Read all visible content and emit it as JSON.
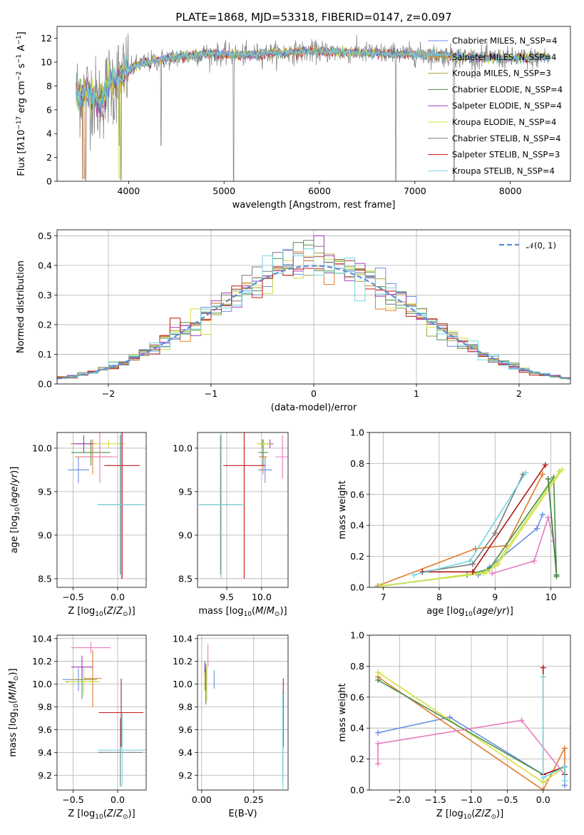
{
  "figure": {
    "title": "PLATE=1868, MJD=53318, FIBERID=0147, z=0.097",
    "colors": [
      "#6a8fe0",
      "#e07b2e",
      "#a8a040",
      "#4a8f4a",
      "#9f3ab8",
      "#d6df3a",
      "#7a7a7a",
      "#c21818",
      "#70d6e0"
    ],
    "highlight_colors": {
      "pink": "#e77bbd",
      "lime": "#c7e25a",
      "darkred": "#b01414",
      "darkgreen": "#3a7a3a"
    }
  },
  "chart_data": [
    {
      "id": "spectrum",
      "type": "line",
      "xlabel": "wavelength [Angstrom, rest frame]",
      "ylabel": "Flux [f_λ10^-17 erg cm^-2 s^-1 A^-1]",
      "xlim": [
        3250,
        8630
      ],
      "ylim": [
        0,
        13
      ],
      "xticks": [
        4000,
        5000,
        6000,
        7000,
        8000
      ],
      "yticks": [
        0,
        2,
        4,
        6,
        8,
        10,
        12
      ],
      "legend_position": "top-right",
      "legend": [
        "Chabrier MILES, N_SSP=4",
        "Salpeter MILES, N_SSP=4",
        "Kroupa MILES, N_SSP=3",
        "Chabrier ELODIE, N_SSP=4",
        "Salpeter ELODIE, N_SSP=4",
        "Kroupa ELODIE, N_SSP=4",
        "Chabrier STELIB, N_SSP=4",
        "Salpeter STELIB, N_SSP=3",
        "Kroupa STELIB, N_SSP=4"
      ],
      "continuum": [
        [
          3450,
          7.4
        ],
        [
          3600,
          7.3
        ],
        [
          3700,
          6.5
        ],
        [
          3800,
          8.2
        ],
        [
          3950,
          9.0
        ],
        [
          4100,
          9.8
        ],
        [
          4400,
          10.3
        ],
        [
          4800,
          10.7
        ],
        [
          5200,
          10.6
        ],
        [
          5600,
          10.8
        ],
        [
          6000,
          10.9
        ],
        [
          6400,
          10.8
        ],
        [
          6800,
          10.7
        ],
        [
          7200,
          10.6
        ],
        [
          7600,
          10.4
        ],
        [
          8000,
          10.3
        ],
        [
          8400,
          10.4
        ]
      ],
      "dips": [
        [
          3520,
          0.2
        ],
        [
          3550,
          0.1
        ],
        [
          3850,
          5.2
        ],
        [
          3900,
          3.0
        ],
        [
          3920,
          0.1
        ],
        [
          4340,
          3.0
        ],
        [
          5100,
          0.0
        ],
        [
          6800,
          0.0
        ],
        [
          7410,
          0.0
        ]
      ]
    },
    {
      "id": "residuals",
      "type": "histogram",
      "xlabel": "(data-model)/error",
      "ylabel": "Normed distribution",
      "xlim": [
        -2.5,
        2.5
      ],
      "ylim": [
        0,
        0.52
      ],
      "xticks": [
        -2,
        -1,
        0,
        1,
        2
      ],
      "yticks": [
        0.0,
        0.1,
        0.2,
        0.3,
        0.4,
        0.5
      ],
      "legend_position": "top-right",
      "legend": [
        "𝒩(0, 1)"
      ],
      "bin_width": 0.1,
      "normal": {
        "mean": 0,
        "sigma": 1
      }
    },
    {
      "id": "age-vs-Z",
      "type": "errorbar",
      "xlabel": "Z [log10(Z/Z⊙)]",
      "ylabel": "age [log10(age/yr)]",
      "xlim": [
        -0.68,
        0.32
      ],
      "ylim": [
        8.4,
        10.18
      ],
      "xticks": [
        -0.5,
        0.0
      ],
      "yticks": [
        8.5,
        9.0,
        9.5,
        10.0
      ],
      "points": [
        {
          "x": -0.44,
          "y": 9.75,
          "xerr": 0.12,
          "yerr": 0.15,
          "c": 0
        },
        {
          "x": -0.28,
          "y": 9.9,
          "xerr": 0.2,
          "yerr": 0.2,
          "c": 1
        },
        {
          "x": -0.38,
          "y": 10.05,
          "xerr": 0.15,
          "yerr": 0.05,
          "c": 2
        },
        {
          "x": -0.3,
          "y": 9.95,
          "xerr": 0.22,
          "yerr": 0.15,
          "c": 3
        },
        {
          "x": -0.38,
          "y": 10.05,
          "xerr": 0.12,
          "yerr": 0.1,
          "c": 4
        },
        {
          "x": -0.1,
          "y": 10.05,
          "xerr": 0.18,
          "yerr": 0.05,
          "c": 5
        },
        {
          "x": 0.03,
          "y": 9.35,
          "xerr": 0.25,
          "yerr": 0.8,
          "c": 6
        },
        {
          "x": 0.05,
          "y": 9.8,
          "xerr": 0.2,
          "yerr": 1.3,
          "c": 7
        },
        {
          "x": 0.04,
          "y": 9.35,
          "xerr": 0.27,
          "yerr": 0.85,
          "c": 8
        },
        {
          "x": -0.2,
          "y": 9.9,
          "xerr": 0.2,
          "yerr": 0.3,
          "hc": "pink"
        }
      ]
    },
    {
      "id": "age-vs-mass",
      "type": "errorbar",
      "xlabel": "mass [log10(M/M⊙)]",
      "ylabel": "",
      "xlim": [
        9.08,
        10.38
      ],
      "ylim": [
        8.4,
        10.18
      ],
      "xticks": [
        9.5,
        10.0
      ],
      "yticks": [
        8.5,
        9.0,
        9.5,
        10.0
      ],
      "points": [
        {
          "x": 10.05,
          "y": 9.75,
          "xerr": 0.1,
          "yerr": 0.15,
          "c": 0
        },
        {
          "x": 10.02,
          "y": 9.9,
          "xerr": 0.06,
          "yerr": 0.2,
          "c": 1
        },
        {
          "x": 10.0,
          "y": 10.05,
          "xerr": 0.06,
          "yerr": 0.05,
          "c": 2
        },
        {
          "x": 10.02,
          "y": 9.95,
          "xerr": 0.07,
          "yerr": 0.15,
          "c": 3
        },
        {
          "x": 10.12,
          "y": 10.05,
          "xerr": 0.05,
          "yerr": 0.05,
          "c": 4
        },
        {
          "x": 10.03,
          "y": 10.05,
          "xerr": 0.1,
          "yerr": 0.05,
          "c": 5
        },
        {
          "x": 9.41,
          "y": 9.35,
          "xerr": 0.3,
          "yerr": 0.8,
          "c": 6
        },
        {
          "x": 9.75,
          "y": 9.8,
          "xerr": 0.3,
          "yerr": 1.3,
          "c": 7
        },
        {
          "x": 9.42,
          "y": 9.35,
          "xerr": 0.33,
          "yerr": 0.85,
          "c": 8
        },
        {
          "x": 10.3,
          "y": 9.9,
          "xerr": 0.1,
          "yerr": 0.25,
          "hc": "pink"
        }
      ]
    },
    {
      "id": "mass-weight-vs-age",
      "type": "line",
      "xlabel": "age [log10(age/yr)]",
      "ylabel": "mass weight",
      "xlim": [
        6.75,
        10.35
      ],
      "ylim": [
        0,
        1.0
      ],
      "xticks": [
        7,
        8,
        9,
        10
      ],
      "yticks": [
        0.0,
        0.2,
        0.4,
        0.6,
        0.8,
        1.0
      ],
      "series": [
        {
          "c": 0,
          "x": [
            8.7,
            8.9,
            9.75,
            9.85
          ],
          "y": [
            0.08,
            0.13,
            0.38,
            0.47
          ]
        },
        {
          "c": 1,
          "x": [
            6.9,
            8.65,
            9.2,
            9.85
          ],
          "y": [
            0.01,
            0.25,
            0.27,
            0.73
          ]
        },
        {
          "c": 6,
          "x": [
            7.7,
            8.6,
            9.0,
            9.5
          ],
          "y": [
            0.1,
            0.15,
            0.35,
            0.73
          ]
        },
        {
          "c": 3,
          "x": [
            7.0,
            8.5,
            8.9,
            10.05,
            10.1
          ],
          "y": [
            0.01,
            0.08,
            0.12,
            0.71,
            0.07
          ]
        },
        {
          "c": 5,
          "x": [
            7.0,
            8.85,
            9.05,
            10.2
          ],
          "y": [
            0.01,
            0.1,
            0.15,
            0.76
          ]
        },
        {
          "hc": "lime",
          "x": [
            6.95,
            8.8,
            9.0,
            10.15
          ],
          "y": [
            0.01,
            0.09,
            0.14,
            0.75
          ]
        },
        {
          "hc": "darkred",
          "x": [
            7.7,
            8.6,
            9.9
          ],
          "y": [
            0.1,
            0.1,
            0.79
          ]
        },
        {
          "hc": "pink",
          "x": [
            8.95,
            9.7,
            9.95,
            10.05
          ],
          "y": [
            0.09,
            0.17,
            0.45,
            0.3
          ]
        },
        {
          "c": 8,
          "x": [
            7.55,
            8.55,
            9.55
          ],
          "y": [
            0.08,
            0.17,
            0.74
          ]
        },
        {
          "hc": "darkgreen",
          "x": [
            9.95,
            10.1
          ],
          "y": [
            0.7,
            0.08
          ]
        }
      ]
    },
    {
      "id": "mass-vs-Z",
      "type": "errorbar",
      "xlabel": "Z [log10(Z/Z⊙)]",
      "ylabel": "mass [log10(M/M⊙)]",
      "xlim": [
        -0.68,
        0.32
      ],
      "ylim": [
        9.07,
        10.43
      ],
      "xticks": [
        -0.5,
        0.0
      ],
      "yticks": [
        9.2,
        9.4,
        9.6,
        9.8,
        10.0,
        10.2,
        10.4
      ],
      "points": [
        {
          "x": -0.44,
          "y": 10.04,
          "xerr": 0.18,
          "yerr": 0.1,
          "c": 0
        },
        {
          "x": -0.28,
          "y": 10.05,
          "xerr": 0.1,
          "yerr": 0.25,
          "c": 1
        },
        {
          "x": -0.38,
          "y": 10.04,
          "xerr": 0.15,
          "yerr": 0.1,
          "c": 2
        },
        {
          "x": -0.4,
          "y": 10.02,
          "xerr": 0.18,
          "yerr": 0.15,
          "c": 3
        },
        {
          "x": -0.4,
          "y": 10.15,
          "xerr": 0.12,
          "yerr": 0.1,
          "c": 4
        },
        {
          "x": -0.38,
          "y": 10.02,
          "xerr": 0.18,
          "yerr": 0.12,
          "c": 5
        },
        {
          "x": 0.03,
          "y": 9.4,
          "xerr": 0.25,
          "yerr": 0.3,
          "c": 6
        },
        {
          "x": 0.04,
          "y": 9.75,
          "xerr": 0.25,
          "yerr": 0.3,
          "c": 7
        },
        {
          "x": 0.05,
          "y": 9.42,
          "xerr": 0.27,
          "yerr": 0.32,
          "c": 8
        },
        {
          "x": -0.3,
          "y": 10.32,
          "xerr": 0.22,
          "yerr": 0.05,
          "hc": "pink"
        }
      ]
    },
    {
      "id": "mass-vs-EBV",
      "type": "errorbar",
      "xlabel": "E(B-V)",
      "ylabel": "",
      "xlim": [
        -0.02,
        0.415
      ],
      "ylim": [
        9.07,
        10.43
      ],
      "xticks": [
        0.0,
        0.25
      ],
      "xtick_labels": [
        "0.00",
        "0.25"
      ],
      "yticks": [
        9.2,
        9.4,
        9.6,
        9.8,
        10.0,
        10.2,
        10.4
      ],
      "points": [
        {
          "x": 0.06,
          "y": 10.04,
          "xerr": 0,
          "yerr": 0.08,
          "c": 0
        },
        {
          "x": 0.02,
          "y": 10.05,
          "xerr": 0,
          "yerr": 0.1,
          "c": 1
        },
        {
          "x": 0.015,
          "y": 10.04,
          "xerr": 0,
          "yerr": 0.1,
          "c": 2
        },
        {
          "x": 0.02,
          "y": 10.0,
          "xerr": 0,
          "yerr": 0.18,
          "c": 3
        },
        {
          "x": 0.015,
          "y": 10.15,
          "xerr": 0,
          "yerr": 0.05,
          "c": 4
        },
        {
          "x": 0.025,
          "y": 10.0,
          "xerr": 0,
          "yerr": 0.15,
          "c": 5
        },
        {
          "x": 0.39,
          "y": 9.55,
          "xerr": 0,
          "yerr": 0.38,
          "c": 6
        },
        {
          "x": 0.392,
          "y": 9.75,
          "xerr": 0,
          "yerr": 0.3,
          "c": 7
        },
        {
          "x": 0.39,
          "y": 9.5,
          "xerr": 0,
          "yerr": 0.42,
          "c": 8
        },
        {
          "x": 0.03,
          "y": 10.25,
          "xerr": 0,
          "yerr": 0.1,
          "hc": "pink"
        }
      ]
    },
    {
      "id": "mass-weight-vs-Z",
      "type": "line",
      "xlabel": "Z [log10(Z/Z⊙)]",
      "ylabel": "mass weight",
      "xlim": [
        -2.42,
        0.38
      ],
      "ylim": [
        0,
        1.0
      ],
      "xticks": [
        -2.0,
        -1.5,
        -1.0,
        -0.5,
        0.0
      ],
      "yticks": [
        0.0,
        0.2,
        0.4,
        0.6,
        0.8,
        1.0
      ],
      "series": [
        {
          "c": 0,
          "x": [
            -2.3,
            -1.3,
            0.0,
            0.3,
            0.3
          ],
          "y": [
            0.37,
            0.47,
            0.1,
            0.15,
            0.03
          ]
        },
        {
          "c": 1,
          "x": [
            -2.3,
            0.0,
            0.3,
            0.3
          ],
          "y": [
            0.73,
            0.0,
            0.27,
            0.1
          ]
        },
        {
          "c": 5,
          "x": [
            -2.3,
            0.0,
            0.3
          ],
          "y": [
            0.76,
            0.05,
            0.15
          ]
        },
        {
          "c": 3,
          "x": [
            -2.3,
            0.0,
            0.3
          ],
          "y": [
            0.71,
            0.1,
            0.15
          ]
        },
        {
          "hc": "pink",
          "x": [
            -2.3,
            -2.3,
            -0.3,
            0.3
          ],
          "y": [
            0.17,
            0.3,
            0.45,
            0.1
          ]
        },
        {
          "hc": "darkred",
          "x": [
            0.0,
            0.0,
            0.3,
            0.3
          ],
          "y": [
            0.79,
            0.1,
            0.15,
            0.1
          ]
        },
        {
          "c": 8,
          "x": [
            0.0,
            0.0,
            0.3,
            0.3
          ],
          "y": [
            0.73,
            0.08,
            0.15,
            0.06
          ]
        }
      ]
    }
  ]
}
